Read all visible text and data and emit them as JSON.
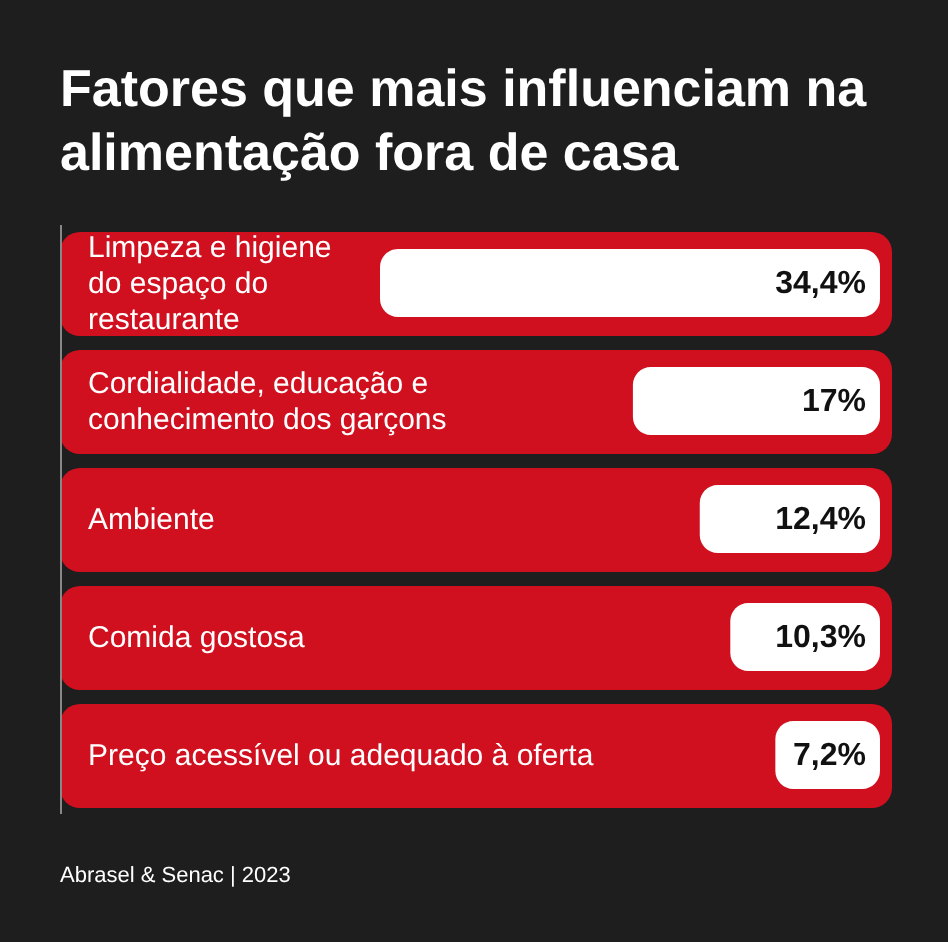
{
  "chart_data": {
    "type": "bar",
    "orientation": "horizontal",
    "title": "Fatores que mais influenciam na alimentação fora de casa",
    "categories": [
      "Limpeza e higiene do espaço do restaurante",
      "Cordialidade, educação e conhecimento dos garçons",
      "Ambiente",
      "Comida gostosa",
      "Preço acessível ou adequado à oferta"
    ],
    "values": [
      34.4,
      17,
      12.4,
      10.3,
      7.2
    ],
    "value_labels": [
      "34,4%",
      "17%",
      "12,4%",
      "10,3%",
      "7,2%"
    ],
    "color": "#ffffff",
    "annotations": [
      "Abrasel & Senac | 2023"
    ]
  }
}
